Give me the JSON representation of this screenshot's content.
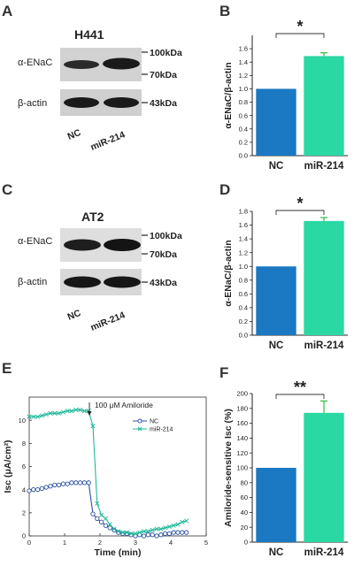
{
  "panels": {
    "A": "A",
    "B": "B",
    "C": "C",
    "D": "D",
    "E": "E",
    "F": "F"
  },
  "blot_h441": {
    "title": "H441",
    "row1": "α-ENaC",
    "row2": "β-actin",
    "mw_100": "100kDa",
    "mw_70": "70kDa",
    "mw_43": "43kDa",
    "lane1": "NC",
    "lane2": "miR-214"
  },
  "blot_at2": {
    "title": "AT2",
    "row1": "α-ENaC",
    "row2": "β-actin",
    "mw_100": "100kDa",
    "mw_70": "70kDa",
    "mw_43": "43kDa",
    "lane1": "NC",
    "lane2": "miR-214"
  },
  "chart_data": [
    {
      "panel": "B",
      "type": "bar",
      "categories": [
        "NC",
        "miR-214"
      ],
      "values": [
        1.0,
        1.49
      ],
      "errors": [
        0,
        0.05
      ],
      "colors": [
        "#1b78c2",
        "#2ad8a4"
      ],
      "ylabel": "α-ENaC/β-actin",
      "ylim": [
        0,
        1.8
      ],
      "yticks": [
        "0.0",
        "0.2",
        "0.4",
        "0.6",
        "0.8",
        "1.0",
        "1.2",
        "1.4",
        "1.6"
      ],
      "significance": "*"
    },
    {
      "panel": "D",
      "type": "bar",
      "categories": [
        "NC",
        "miR-214"
      ],
      "values": [
        1.0,
        1.66
      ],
      "errors": [
        0,
        0.05
      ],
      "colors": [
        "#1b78c2",
        "#2ad8a4"
      ],
      "ylabel": "α-ENaC/β-actin",
      "ylim": [
        0,
        1.8
      ],
      "yticks": [
        "0.0",
        "0.2",
        "0.4",
        "0.6",
        "0.8",
        "1.0",
        "1.2",
        "1.4",
        "1.6",
        "1.8"
      ],
      "significance": "*"
    },
    {
      "panel": "E",
      "type": "line",
      "xlabel": "Time (min)",
      "ylabel": "Isc (μA/cm²)",
      "xlim": [
        0,
        5
      ],
      "ylim": [
        0,
        12
      ],
      "xticks": [
        "0",
        "1",
        "2",
        "3",
        "4",
        "5"
      ],
      "yticks": [
        "0",
        "2",
        "4",
        "6",
        "8",
        "10"
      ],
      "annotation": "100 μM  Amiloride",
      "annotation_x": 1.7,
      "series": [
        {
          "name": "NC",
          "marker": "o",
          "color": "#2a4f9e",
          "x": [
            0.0,
            0.12,
            0.24,
            0.36,
            0.48,
            0.6,
            0.72,
            0.84,
            0.96,
            1.08,
            1.2,
            1.32,
            1.44,
            1.56,
            1.68,
            1.8,
            1.92,
            2.04,
            2.16,
            2.28,
            2.4,
            2.52,
            2.64,
            2.76,
            2.88,
            3.0,
            3.12,
            3.24,
            3.36,
            3.48,
            3.6,
            3.72,
            3.84,
            3.96,
            4.08,
            4.2,
            4.32,
            4.44
          ],
          "y": [
            3.9,
            4.0,
            4.0,
            4.1,
            4.2,
            4.3,
            4.4,
            4.4,
            4.5,
            4.5,
            4.6,
            4.6,
            4.6,
            4.6,
            4.6,
            1.9,
            1.5,
            1.2,
            0.9,
            0.7,
            0.5,
            0.3,
            0.2,
            0.2,
            0.1,
            0.0,
            0.1,
            0.0,
            0.1,
            0.1,
            0.0,
            0.1,
            0.2,
            0.2,
            0.3,
            0.3,
            0.3,
            0.3
          ]
        },
        {
          "name": "miR-214",
          "marker": "x",
          "color": "#23b89a",
          "x": [
            0.0,
            0.12,
            0.24,
            0.36,
            0.48,
            0.6,
            0.72,
            0.84,
            0.96,
            1.08,
            1.2,
            1.32,
            1.44,
            1.56,
            1.68,
            1.8,
            1.92,
            2.04,
            2.16,
            2.28,
            2.4,
            2.52,
            2.64,
            2.76,
            2.88,
            3.0,
            3.12,
            3.24,
            3.36,
            3.48,
            3.6,
            3.72,
            3.84,
            3.96,
            4.08,
            4.2,
            4.32,
            4.44
          ],
          "y": [
            10.3,
            10.3,
            10.3,
            10.4,
            10.5,
            10.6,
            10.6,
            10.6,
            10.7,
            10.8,
            10.8,
            10.9,
            10.9,
            10.8,
            10.8,
            9.5,
            2.8,
            1.8,
            1.5,
            1.0,
            0.6,
            0.4,
            0.3,
            0.3,
            0.2,
            0.2,
            0.3,
            0.4,
            0.4,
            0.5,
            0.6,
            0.6,
            0.7,
            0.8,
            0.9,
            1.0,
            1.2,
            1.3
          ]
        }
      ]
    },
    {
      "panel": "F",
      "type": "bar",
      "categories": [
        "NC",
        "miR-214"
      ],
      "values": [
        100,
        174
      ],
      "errors": [
        0,
        16
      ],
      "colors": [
        "#1b78c2",
        "#2ad8a4"
      ],
      "ylabel": "Amiloride-sensitive Isc (%)",
      "ylim": [
        0,
        200
      ],
      "yticks": [
        "0",
        "20",
        "40",
        "60",
        "80",
        "100",
        "120",
        "140",
        "160",
        "180",
        "200"
      ],
      "significance": "**"
    }
  ]
}
